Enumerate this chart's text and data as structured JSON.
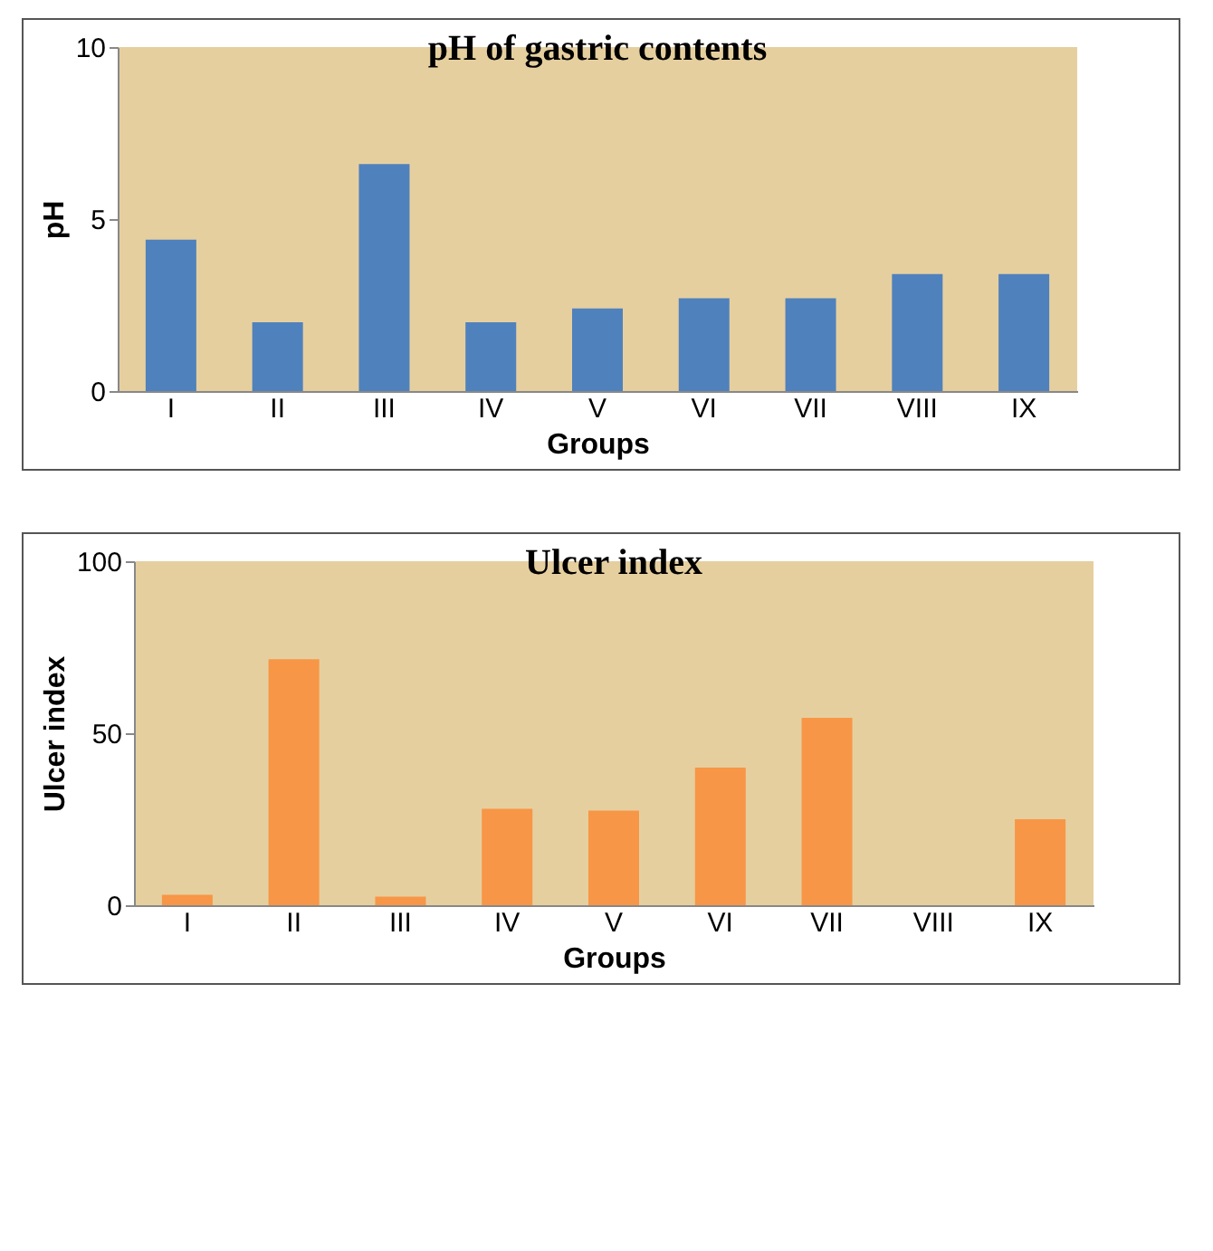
{
  "chart_data": [
    {
      "type": "bar",
      "title": "pH of gastric contents",
      "xlabel": "Groups",
      "ylabel": "pH",
      "categories": [
        "I",
        "II",
        "III",
        "IV",
        "V",
        "VI",
        "VII",
        "VIII",
        "IX"
      ],
      "series": [
        {
          "color": "#4f81bd",
          "values": [
            4.4,
            2.0,
            6.6,
            2.0,
            2.4,
            2.7,
            2.7,
            3.4,
            3.4
          ]
        }
      ],
      "ylim": [
        0,
        10
      ],
      "yticks": [
        0,
        5,
        10
      ]
    },
    {
      "type": "bar",
      "title": "Ulcer index",
      "xlabel": "Groups",
      "ylabel": "Ulcer index",
      "categories": [
        "I",
        "II",
        "III",
        "IV",
        "V",
        "VI",
        "VII",
        "VIII",
        "IX"
      ],
      "series": [
        {
          "color": "#f79646",
          "values": [
            3,
            71.5,
            2.5,
            28,
            27.5,
            40,
            54.5,
            0,
            25
          ]
        }
      ],
      "ylim": [
        0,
        100
      ],
      "yticks": [
        0,
        50,
        100
      ]
    }
  ]
}
